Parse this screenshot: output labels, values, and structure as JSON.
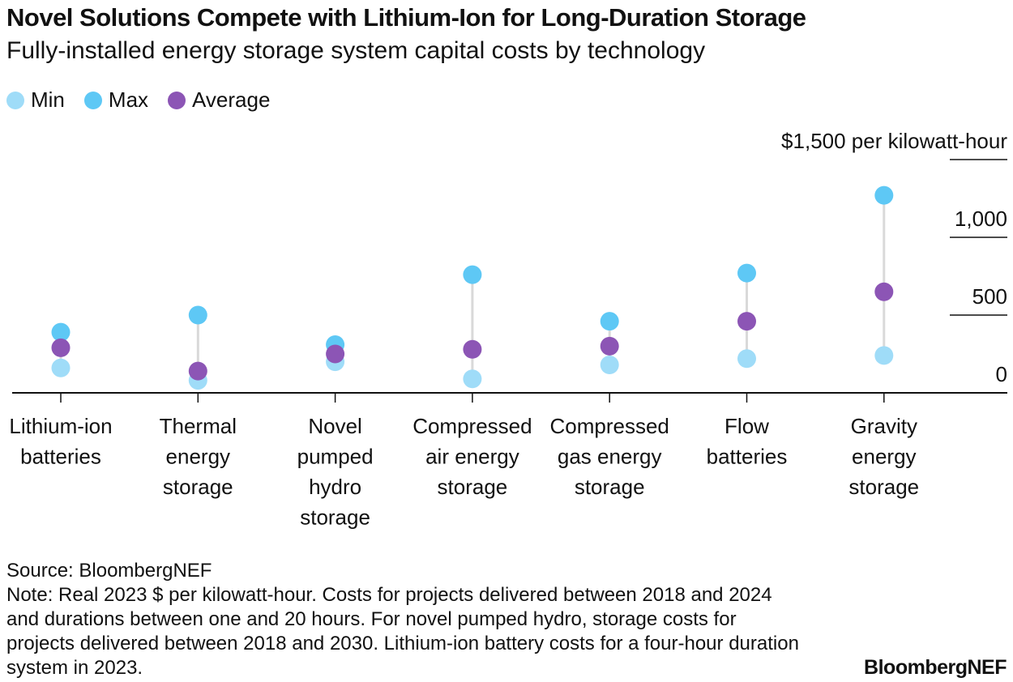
{
  "title": "Novel Solutions Compete with Lithium-Ion for Long-Duration Storage",
  "subtitle": "Fully-installed energy storage system capital costs by technology",
  "source": "Source: BloombergNEF",
  "note": "Note: Real 2023 $ per kilowatt-hour. Costs for projects delivered between 2018 and 2024 and durations between one and 20 hours. For novel pumped hydro, storage costs for projects delivered between 2018 and 2030. Lithium-ion battery costs for a four-hour duration system in 2023.",
  "brand": "BloombergNEF",
  "colors": {
    "min": "#9fdcf8",
    "max": "#5ec8f5",
    "average": "#8c55b5",
    "range_line": "#d9d9d9",
    "axis": "#111111"
  },
  "chart_data": {
    "type": "dot-range",
    "categories": [
      [
        "Lithium-ion",
        "batteries"
      ],
      [
        "Thermal",
        "energy",
        "storage"
      ],
      [
        "Novel",
        "pumped",
        "hydro",
        "storage"
      ],
      [
        "Compressed",
        "air energy",
        "storage"
      ],
      [
        "Compressed",
        "gas energy",
        "storage"
      ],
      [
        "Flow",
        "batteries"
      ],
      [
        "Gravity",
        "energy",
        "storage"
      ]
    ],
    "series": [
      {
        "name": "Min",
        "values": [
          160,
          80,
          200,
          90,
          180,
          220,
          240
        ]
      },
      {
        "name": "Max",
        "values": [
          390,
          500,
          310,
          760,
          460,
          770,
          1270
        ]
      },
      {
        "name": "Average",
        "values": [
          290,
          140,
          250,
          280,
          300,
          460,
          650
        ]
      }
    ],
    "y_ticks": [
      {
        "value": 0,
        "label": "0"
      },
      {
        "value": 500,
        "label": "500"
      },
      {
        "value": 1000,
        "label": "1,000"
      },
      {
        "value": 1500,
        "label": "$1,500 per kilowatt-hour"
      }
    ],
    "ylim": [
      0,
      1500
    ]
  }
}
